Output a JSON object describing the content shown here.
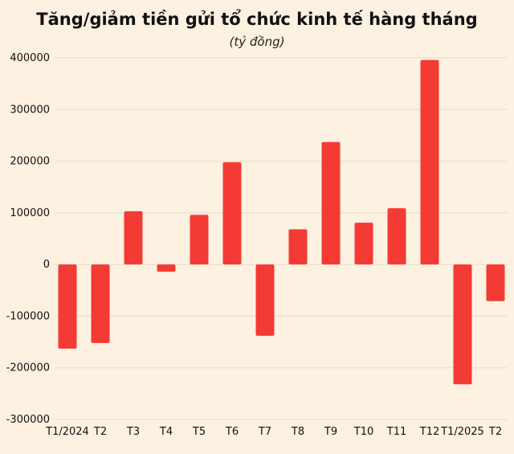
{
  "chart_data": {
    "type": "bar",
    "title": "Tăng/giảm tiền gửi tổ chức kinh tế hàng tháng",
    "subtitle": "(tỷ đồng)",
    "xlabel": "",
    "ylabel": "",
    "categories": [
      "T1/2024",
      "T2",
      "T3",
      "T4",
      "T5",
      "T6",
      "T7",
      "T8",
      "T9",
      "T10",
      "T11",
      "T12",
      "T1/2025",
      "T2"
    ],
    "values": [
      -163000,
      -152000,
      103000,
      -14000,
      96000,
      198000,
      -138000,
      68000,
      237000,
      81000,
      109000,
      396000,
      -232000,
      -71000
    ],
    "ylim": [
      -300000,
      400000
    ],
    "yticks": [
      400000,
      300000,
      200000,
      100000,
      0,
      -100000,
      -200000,
      -300000
    ],
    "grid": true,
    "colors": {
      "bar": "#f43a34",
      "grid": "#e6dccd",
      "background": "#fdf1e1"
    }
  }
}
